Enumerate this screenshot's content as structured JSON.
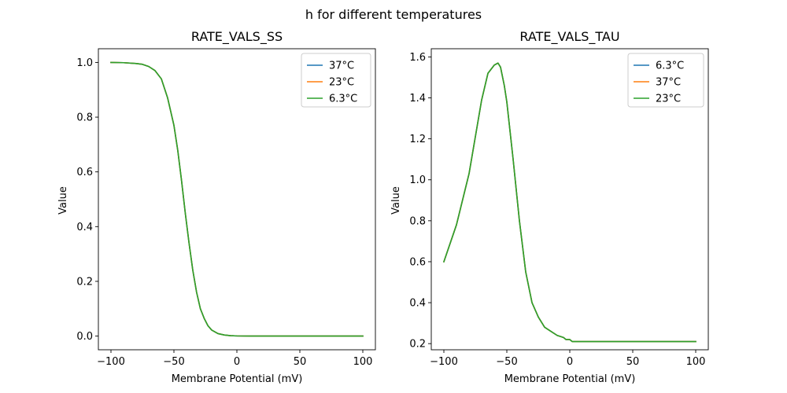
{
  "figure": {
    "suptitle": "h for different temperatures"
  },
  "chart_data": [
    {
      "type": "line",
      "title": "RATE_VALS_SS",
      "xlabel": "Membrane Potential (mV)",
      "ylabel": "Value",
      "xlim": [
        -110,
        110
      ],
      "ylim": [
        -0.05,
        1.05
      ],
      "xticks": [
        -100,
        -50,
        0,
        50,
        100
      ],
      "yticks": [
        0.0,
        0.2,
        0.4,
        0.6,
        0.8,
        1.0
      ],
      "xtick_labels": [
        "−100",
        "−50",
        "0",
        "50",
        "100"
      ],
      "ytick_labels": [
        "0.0",
        "0.2",
        "0.4",
        "0.6",
        "0.8",
        "1.0"
      ],
      "grid": false,
      "legend_position": "top-right",
      "x": [
        -100,
        -90,
        -80,
        -75,
        -70,
        -65,
        -60,
        -55,
        -50,
        -47,
        -44,
        -41,
        -38,
        -35,
        -32,
        -29,
        -26,
        -23,
        -20,
        -15,
        -10,
        -5,
        0,
        10,
        25,
        50,
        75,
        100
      ],
      "series": [
        {
          "name": "37°C",
          "color": "#1f77b4",
          "values": [
            1.0,
            0.999,
            0.996,
            0.993,
            0.985,
            0.97,
            0.94,
            0.87,
            0.77,
            0.68,
            0.57,
            0.45,
            0.34,
            0.24,
            0.16,
            0.1,
            0.065,
            0.038,
            0.022,
            0.009,
            0.004,
            0.0015,
            0.0006,
            0.0001,
            0.0,
            0.0,
            0.0,
            0.0
          ]
        },
        {
          "name": "23°C",
          "color": "#ff7f0e",
          "values": [
            1.0,
            0.999,
            0.996,
            0.993,
            0.985,
            0.97,
            0.94,
            0.87,
            0.77,
            0.68,
            0.57,
            0.45,
            0.34,
            0.24,
            0.16,
            0.1,
            0.065,
            0.038,
            0.022,
            0.009,
            0.004,
            0.0015,
            0.0006,
            0.0001,
            0.0,
            0.0,
            0.0,
            0.0
          ]
        },
        {
          "name": "6.3°C",
          "color": "#2ca02c",
          "values": [
            1.0,
            0.999,
            0.996,
            0.993,
            0.985,
            0.97,
            0.94,
            0.87,
            0.77,
            0.68,
            0.57,
            0.45,
            0.34,
            0.24,
            0.16,
            0.1,
            0.065,
            0.038,
            0.022,
            0.009,
            0.004,
            0.0015,
            0.0006,
            0.0001,
            0.0,
            0.0,
            0.0,
            0.0
          ]
        }
      ]
    },
    {
      "type": "line",
      "title": "RATE_VALS_TAU",
      "xlabel": "Membrane Potential (mV)",
      "ylabel": "Value",
      "xlim": [
        -110,
        110
      ],
      "ylim": [
        0.17,
        1.64
      ],
      "xticks": [
        -100,
        -50,
        0,
        50,
        100
      ],
      "yticks": [
        0.2,
        0.4,
        0.6,
        0.8,
        1.0,
        1.2,
        1.4,
        1.6
      ],
      "xtick_labels": [
        "−100",
        "−50",
        "0",
        "50",
        "100"
      ],
      "ytick_labels": [
        "0.2",
        "0.4",
        "0.6",
        "0.8",
        "1.0",
        "1.2",
        "1.4",
        "1.6"
      ],
      "grid": false,
      "legend_position": "top-right",
      "x": [
        -100,
        -90,
        -80,
        -75,
        -70,
        -65,
        -60,
        -57,
        -55,
        -52,
        -50,
        -45,
        -40,
        -35,
        -30,
        -25,
        -20,
        -15,
        -10,
        -5,
        -3,
        0,
        2,
        10,
        25,
        50,
        75,
        100
      ],
      "series": [
        {
          "name": "6.3°C",
          "color": "#1f77b4",
          "values": [
            0.6,
            0.78,
            1.03,
            1.21,
            1.39,
            1.52,
            1.56,
            1.57,
            1.55,
            1.46,
            1.38,
            1.1,
            0.8,
            0.55,
            0.4,
            0.33,
            0.28,
            0.26,
            0.24,
            0.23,
            0.22,
            0.22,
            0.21,
            0.21,
            0.21,
            0.21,
            0.21,
            0.21
          ]
        },
        {
          "name": "37°C",
          "color": "#ff7f0e",
          "values": [
            0.6,
            0.78,
            1.03,
            1.21,
            1.39,
            1.52,
            1.56,
            1.57,
            1.55,
            1.46,
            1.38,
            1.1,
            0.8,
            0.55,
            0.4,
            0.33,
            0.28,
            0.26,
            0.24,
            0.23,
            0.22,
            0.22,
            0.21,
            0.21,
            0.21,
            0.21,
            0.21,
            0.21
          ]
        },
        {
          "name": "23°C",
          "color": "#2ca02c",
          "values": [
            0.6,
            0.78,
            1.03,
            1.21,
            1.39,
            1.52,
            1.56,
            1.57,
            1.55,
            1.46,
            1.38,
            1.1,
            0.8,
            0.55,
            0.4,
            0.33,
            0.28,
            0.26,
            0.24,
            0.23,
            0.22,
            0.22,
            0.21,
            0.21,
            0.21,
            0.21,
            0.21,
            0.21
          ]
        }
      ]
    }
  ]
}
